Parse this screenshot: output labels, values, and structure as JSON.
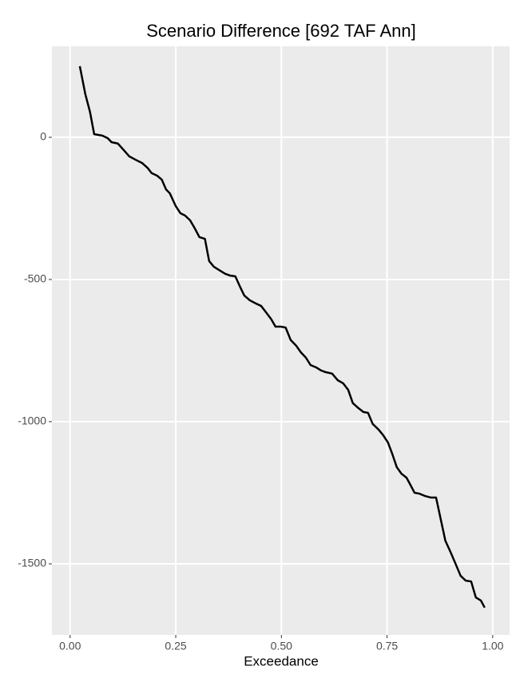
{
  "chart_data": {
    "type": "line",
    "title": "Scenario Difference [692 TAF Ann]",
    "xlabel": "Exceedance",
    "x": [
      0.023,
      0.036,
      0.047,
      0.057,
      0.076,
      0.089,
      0.098,
      0.113,
      0.127,
      0.14,
      0.155,
      0.17,
      0.183,
      0.193,
      0.206,
      0.217,
      0.227,
      0.236,
      0.25,
      0.261,
      0.272,
      0.284,
      0.295,
      0.306,
      0.319,
      0.329,
      0.34,
      0.355,
      0.367,
      0.378,
      0.391,
      0.401,
      0.412,
      0.425,
      0.439,
      0.452,
      0.465,
      0.476,
      0.486,
      0.499,
      0.51,
      0.522,
      0.535,
      0.546,
      0.558,
      0.569,
      0.582,
      0.594,
      0.605,
      0.62,
      0.633,
      0.646,
      0.658,
      0.669,
      0.682,
      0.694,
      0.705,
      0.716,
      0.73,
      0.741,
      0.752,
      0.762,
      0.773,
      0.784,
      0.796,
      0.803,
      0.815,
      0.826,
      0.839,
      0.854,
      0.866,
      0.877,
      0.888,
      0.9,
      0.913,
      0.924,
      0.936,
      0.949,
      0.96,
      0.972,
      0.981
    ],
    "series": [
      {
        "color": "#000000",
        "values": [
          250,
          152,
          90,
          11,
          6,
          -3,
          -17,
          -22,
          -45,
          -67,
          -79,
          -90,
          -107,
          -126,
          -135,
          -149,
          -183,
          -197,
          -242,
          -267,
          -275,
          -292,
          -320,
          -351,
          -357,
          -435,
          -455,
          -469,
          -480,
          -486,
          -489,
          -522,
          -556,
          -573,
          -584,
          -593,
          -618,
          -640,
          -666,
          -666,
          -669,
          -713,
          -733,
          -756,
          -775,
          -801,
          -809,
          -820,
          -826,
          -831,
          -854,
          -865,
          -888,
          -935,
          -952,
          -966,
          -969,
          -1008,
          -1028,
          -1048,
          -1073,
          -1112,
          -1160,
          -1183,
          -1197,
          -1216,
          -1250,
          -1253,
          -1261,
          -1267,
          -1267,
          -1343,
          -1419,
          -1458,
          -1503,
          -1542,
          -1559,
          -1562,
          -1618,
          -1629,
          -1654
        ]
      }
    ],
    "xlim": [
      -0.043,
      1.04
    ],
    "xticks": [
      {
        "value": 0,
        "label": "0.00"
      },
      {
        "value": 0.25,
        "label": "0.25"
      },
      {
        "value": 0.5,
        "label": "0.50"
      },
      {
        "value": 0.75,
        "label": "0.75"
      },
      {
        "value": 1,
        "label": "1.00"
      }
    ],
    "ylim": [
      -1750,
      320
    ],
    "yticks": [
      0,
      -500,
      -1000,
      -1500
    ],
    "grid": true
  }
}
